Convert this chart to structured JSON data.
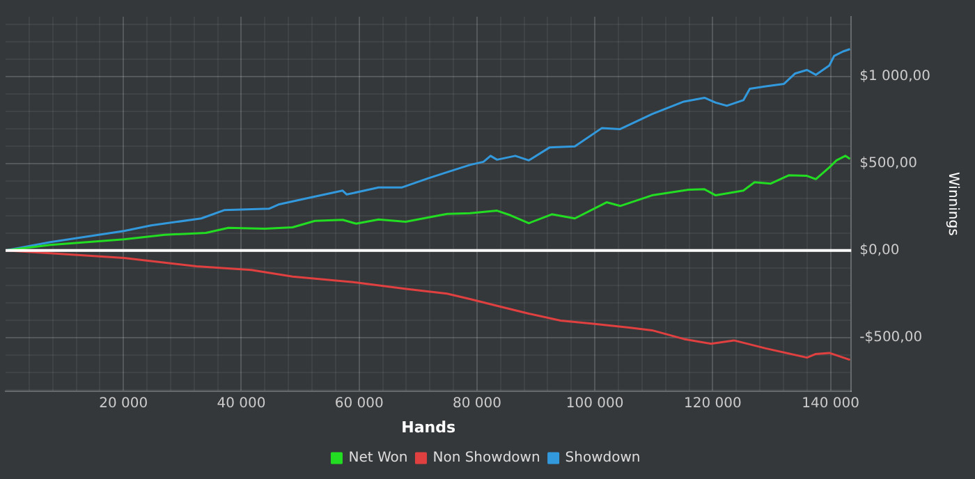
{
  "chart_data": {
    "type": "line",
    "xlabel": "Hands",
    "ylabel": "Winnings",
    "xlim": [
      0,
      143500
    ],
    "ylim": [
      -808,
      1344
    ],
    "xticks": [
      {
        "value": 4000,
        "label": null
      },
      {
        "value": 8000,
        "label": null
      },
      {
        "value": 12000,
        "label": null
      },
      {
        "value": 16000,
        "label": null
      },
      {
        "value": 20000,
        "label": "20 000"
      },
      {
        "value": 24000,
        "label": null
      },
      {
        "value": 28000,
        "label": null
      },
      {
        "value": 32000,
        "label": null
      },
      {
        "value": 36000,
        "label": null
      },
      {
        "value": 40000,
        "label": "40 000"
      },
      {
        "value": 44000,
        "label": null
      },
      {
        "value": 48000,
        "label": null
      },
      {
        "value": 52000,
        "label": null
      },
      {
        "value": 56000,
        "label": null
      },
      {
        "value": 60000,
        "label": "60 000"
      },
      {
        "value": 64000,
        "label": null
      },
      {
        "value": 68000,
        "label": null
      },
      {
        "value": 72000,
        "label": null
      },
      {
        "value": 76000,
        "label": null
      },
      {
        "value": 80000,
        "label": "80 000"
      },
      {
        "value": 84000,
        "label": null
      },
      {
        "value": 88000,
        "label": null
      },
      {
        "value": 92000,
        "label": null
      },
      {
        "value": 96000,
        "label": null
      },
      {
        "value": 100000,
        "label": "100 000"
      },
      {
        "value": 104000,
        "label": null
      },
      {
        "value": 108000,
        "label": null
      },
      {
        "value": 112000,
        "label": null
      },
      {
        "value": 116000,
        "label": null
      },
      {
        "value": 120000,
        "label": "120 000"
      },
      {
        "value": 124000,
        "label": null
      },
      {
        "value": 128000,
        "label": null
      },
      {
        "value": 132000,
        "label": null
      },
      {
        "value": 136000,
        "label": null
      },
      {
        "value": 140000,
        "label": "140 000"
      }
    ],
    "yticks": [
      {
        "value": -800,
        "label": null
      },
      {
        "value": -700,
        "label": null
      },
      {
        "value": -600,
        "label": null
      },
      {
        "value": -500,
        "label": "-$500,00"
      },
      {
        "value": -400,
        "label": null
      },
      {
        "value": -300,
        "label": null
      },
      {
        "value": -200,
        "label": null
      },
      {
        "value": -100,
        "label": null
      },
      {
        "value": 0,
        "label": "$0,00"
      },
      {
        "value": 100,
        "label": null
      },
      {
        "value": 200,
        "label": null
      },
      {
        "value": 300,
        "label": null
      },
      {
        "value": 400,
        "label": null
      },
      {
        "value": 500,
        "label": "$500,00"
      },
      {
        "value": 600,
        "label": null
      },
      {
        "value": 700,
        "label": null
      },
      {
        "value": 800,
        "label": null
      },
      {
        "value": 900,
        "label": null
      },
      {
        "value": 1000,
        "label": "$1 000,00"
      },
      {
        "value": 1100,
        "label": null
      },
      {
        "value": 1200,
        "label": null
      },
      {
        "value": 1300,
        "label": null
      }
    ],
    "grid": true,
    "legend": "bottom",
    "marker": "none",
    "line_style": "solid",
    "ref_lines": [
      {
        "axis": "y",
        "value": 0,
        "color": "#ffffff"
      }
    ],
    "series": [
      {
        "name": "Net Won",
        "color": "#22dd22",
        "x": [
          0,
          7600,
          20100,
          27000,
          34000,
          37800,
          44000,
          48700,
          52500,
          57200,
          59500,
          63300,
          67900,
          74900,
          78800,
          83400,
          85700,
          88800,
          92700,
          96600,
          102000,
          104300,
          109700,
          115900,
          118600,
          120500,
          125200,
          127100,
          129800,
          132900,
          136000,
          137500,
          139800,
          141000,
          142500,
          143300
        ],
        "values": [
          0,
          32,
          64,
          90,
          101,
          130,
          125,
          133,
          170,
          176,
          154,
          178,
          165,
          210,
          214,
          229,
          202,
          157,
          208,
          184,
          277,
          256,
          317,
          349,
          352,
          317,
          344,
          392,
          384,
          432,
          429,
          410,
          478,
          518,
          544,
          526
        ]
      },
      {
        "name": "Non Showdown",
        "color": "#e04040",
        "x": [
          0,
          7600,
          20100,
          32400,
          41700,
          48700,
          59500,
          68000,
          74900,
          78800,
          83400,
          88800,
          94200,
          99700,
          105800,
          109700,
          115100,
          119700,
          123600,
          129000,
          136000,
          137500,
          139800,
          143300
        ],
        "values": [
          0,
          -16,
          -43,
          -91,
          -112,
          -150,
          -184,
          -221,
          -248,
          -279,
          -318,
          -363,
          -403,
          -421,
          -443,
          -459,
          -509,
          -536,
          -517,
          -563,
          -616,
          -595,
          -589,
          -629
        ]
      },
      {
        "name": "Showdown",
        "color": "#3399dd",
        "x": [
          0,
          7600,
          20100,
          24700,
          33200,
          37100,
          44700,
          46300,
          51700,
          57200,
          57900,
          63300,
          67200,
          71800,
          74900,
          78800,
          81100,
          82300,
          83400,
          86500,
          88800,
          92300,
          96600,
          101200,
          104300,
          109700,
          115100,
          118600,
          120500,
          122400,
          125200,
          126300,
          129000,
          132100,
          134000,
          136000,
          137500,
          139800,
          140600,
          142100,
          143300
        ],
        "values": [
          0,
          48,
          112,
          144,
          184,
          232,
          240,
          264,
          304,
          344,
          322,
          362,
          362,
          416,
          450,
          492,
          510,
          544,
          522,
          544,
          518,
          592,
          598,
          704,
          698,
          784,
          856,
          878,
          850,
          832,
          864,
          930,
          944,
          958,
          1018,
          1038,
          1010,
          1064,
          1118,
          1144,
          1158
        ]
      }
    ]
  }
}
